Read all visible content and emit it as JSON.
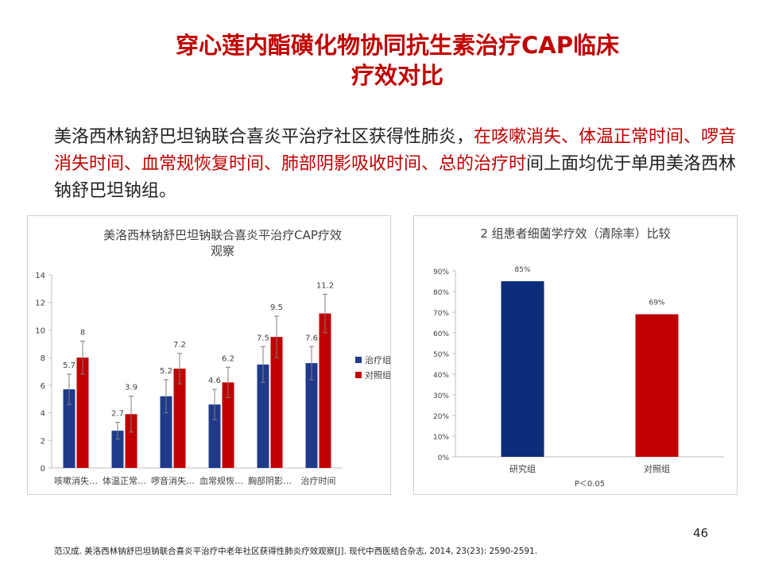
{
  "slide": {
    "title_line1": "穿心莲内酯磺化物协同抗生素治疗CAP临床",
    "title_line2": "疗效对比",
    "intro_plain": "美洛西林钠舒巴坦钠联合喜炎平治疗社区获得性肺炎，",
    "intro_highlight": "在咳嗽消失、体温正常时间、啰音消失时间、血常规恢复时间、肺部阴影吸收时间、总的治疗时",
    "intro_tail": "间上面均优于单用美洛西林钠舒巴坦钠组。",
    "page_number": "46",
    "citation": "范汉成. 美洛西林钠舒巴坦钠联合喜炎平治疗中老年社区获得性肺炎疗效观察[J]. 现代中西医结合杂志, 2014, 23(23): 2590-2591."
  },
  "colors": {
    "title": "#c00000",
    "highlight": "#c00000",
    "series_blue": "#1f3a8a",
    "series_red": "#c00000",
    "study_bar": "#0b2d7a",
    "control_bar": "#c00000"
  },
  "chart_data": [
    {
      "type": "bar",
      "title_line1": "美洛西林钠舒巴坦钠联合喜炎平治疗CAP疗效",
      "title_line2": "观察",
      "categories": [
        "咳嗽消失…",
        "体温正常…",
        "啰音消失…",
        "血常规恢…",
        "胸部阴影…",
        "治疗时间"
      ],
      "series": [
        {
          "name": "治疗组",
          "values": [
            5.7,
            2.7,
            5.2,
            4.6,
            7.5,
            7.6
          ],
          "errors": [
            1.1,
            0.6,
            1.2,
            1.1,
            1.3,
            1.2
          ],
          "color": "#1f3a8a"
        },
        {
          "name": "对照组",
          "values": [
            8,
            3.9,
            7.2,
            6.2,
            9.5,
            11.2
          ],
          "errors": [
            1.2,
            1.3,
            1.1,
            1.1,
            1.5,
            1.4
          ],
          "color": "#c00000"
        }
      ],
      "ylim": [
        0,
        14
      ],
      "yticks": [
        0,
        2,
        4,
        6,
        8,
        10,
        12,
        14
      ],
      "grid": false,
      "legend": "right"
    },
    {
      "type": "bar",
      "title": "2 组患者细菌学疗效（清除率）比较",
      "categories": [
        "研究组",
        "对照组"
      ],
      "values": [
        85,
        69
      ],
      "value_labels": [
        "85%",
        "69%"
      ],
      "colors": [
        "#0b2d7a",
        "#c00000"
      ],
      "ylim": [
        0,
        90
      ],
      "yticks": [
        "0%",
        "10%",
        "20%",
        "30%",
        "40%",
        "50%",
        "60%",
        "70%",
        "80%",
        "90%"
      ],
      "annotation": "P＜0.05",
      "grid": false
    }
  ]
}
